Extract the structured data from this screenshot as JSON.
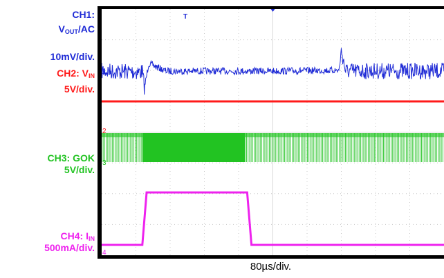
{
  "labels": {
    "ch1_line1": "CH1:",
    "ch1_line2_main": "V",
    "ch1_line2_sub": "OUT",
    "ch1_line2_tail": "/AC",
    "ch1_line3": "10mV/div.",
    "ch2_line1_main": "CH2: V",
    "ch2_line1_sub": "IN",
    "ch2_line2": "5V/div.",
    "ch3_line1": "CH3: GOK",
    "ch3_line2": "5V/div.",
    "ch4_line1_main": "CH4: I",
    "ch4_line1_sub": "IN",
    "ch4_line2": "500mA/div."
  },
  "colors": {
    "ch1": "#1f2bd6",
    "ch2": "#ff1a1a",
    "ch3": "#22c322",
    "ch4": "#ee22ee",
    "frame": "#000000",
    "grid": "#c8c8c8"
  },
  "time_per_div": "80µs/div.",
  "chart_data": {
    "type": "line",
    "title": "",
    "xlabel": "80µs/div.",
    "ylabel": "",
    "grid": true,
    "x_divisions": 10,
    "y_divisions": 8,
    "time_per_div_us": 80,
    "trigger_marker": "T",
    "series": [
      {
        "name": "CH1: VOUT/AC",
        "scale": "10mV/div.",
        "marker": "1",
        "description_points_us_mV": [
          [
            0,
            0
          ],
          [
            95,
            -1
          ],
          [
            100,
            -22
          ],
          [
            110,
            10
          ],
          [
            150,
            0
          ],
          [
            400,
            0
          ],
          [
            555,
            1
          ],
          [
            560,
            28
          ],
          [
            570,
            0
          ],
          [
            800,
            0
          ]
        ]
      },
      {
        "name": "CH2: VIN",
        "scale": "5V/div.",
        "marker": "2",
        "points_us_V": [
          [
            0,
            8
          ],
          [
            800,
            8
          ]
        ]
      },
      {
        "name": "CH3: GOK",
        "scale": "5V/div.",
        "marker": "3",
        "switching_us": [
          [
            0,
            95
          ],
          [
            95,
            335
          ],
          [
            335,
            800
          ]
        ]
      },
      {
        "name": "CH4: IIN",
        "scale": "500mA/div.",
        "marker": "4",
        "points_us_mA": [
          [
            0,
            0
          ],
          [
            95,
            0
          ],
          [
            105,
            1280
          ],
          [
            340,
            1280
          ],
          [
            350,
            0
          ],
          [
            800,
            0
          ]
        ]
      }
    ]
  }
}
